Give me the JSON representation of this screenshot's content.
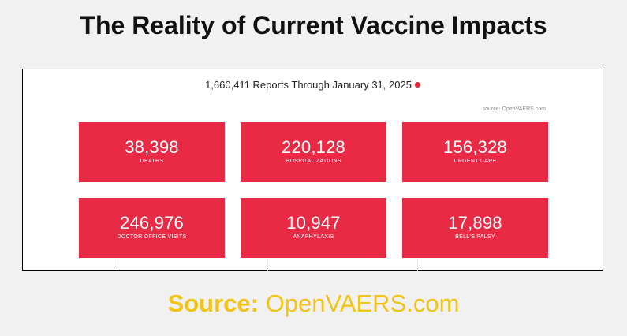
{
  "title": "The Reality of Current Vaccine Impacts",
  "panel": {
    "reports_line": "1,660,411 Reports Through January 31, 2025",
    "source_note": "source: OpenVAERS.com",
    "tiles": [
      {
        "value": "38,398",
        "label": "DEATHS"
      },
      {
        "value": "220,128",
        "label": "HOSPITALIZATIONS"
      },
      {
        "value": "156,328",
        "label": "URGENT CARE"
      },
      {
        "value": "246,976",
        "label": "DOCTOR OFFICE VISITS"
      },
      {
        "value": "10,947",
        "label": "ANAPHYLAXIS"
      },
      {
        "value": "17,898",
        "label": "BELL'S PALSY"
      }
    ]
  },
  "footer": {
    "source_label": "Source:",
    "source_value": "OpenVAERS.com"
  },
  "colors": {
    "tile": "#e82a45",
    "footer_text": "#f2c417",
    "info_dot": "#e5293b"
  }
}
